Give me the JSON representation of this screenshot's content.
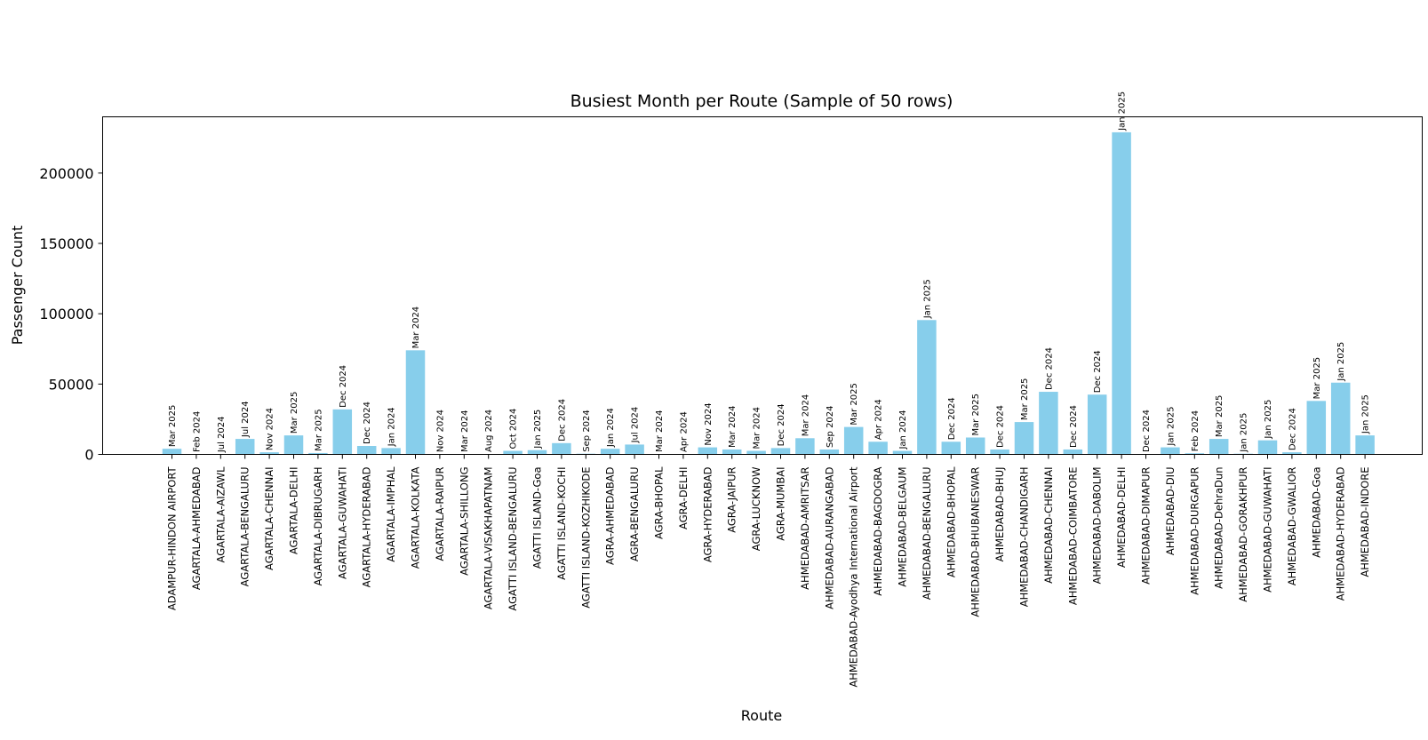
{
  "chart_data": {
    "type": "bar",
    "title": "Busiest Month per Route (Sample of 50 rows)",
    "xlabel": "Route",
    "ylabel": "Passenger Count",
    "ylim": [
      0,
      240000
    ],
    "yticks": [
      0,
      50000,
      100000,
      150000,
      200000
    ],
    "ytick_labels": [
      "0",
      "50000",
      "100000",
      "150000",
      "200000"
    ],
    "bar_color": "#87ceeb",
    "grid": false,
    "bars": [
      {
        "route": "ADAMPUR-HINDON AIRPORT",
        "value": 4000,
        "month": "Mar 2025"
      },
      {
        "route": "AGARTALA-AHMEDABAD",
        "value": 300,
        "month": "Feb 2024"
      },
      {
        "route": "AGARTALA-AIZAWL",
        "value": 200,
        "month": "Jul 2024"
      },
      {
        "route": "AGARTALA-BENGALURU",
        "value": 11000,
        "month": "Jul 2024"
      },
      {
        "route": "AGARTALA-CHENNAI",
        "value": 1500,
        "month": "Nov 2024"
      },
      {
        "route": "AGARTALA-DELHI",
        "value": 13500,
        "month": "Mar 2025"
      },
      {
        "route": "AGARTALA-DIBRUGARH",
        "value": 1000,
        "month": "Mar 2025"
      },
      {
        "route": "AGARTALA-GUWAHATI",
        "value": 32000,
        "month": "Dec 2024"
      },
      {
        "route": "AGARTALA-HYDERABAD",
        "value": 6000,
        "month": "Dec 2024"
      },
      {
        "route": "AGARTALA-IMPHAL",
        "value": 4500,
        "month": "Jan 2024"
      },
      {
        "route": "AGARTALA-KOLKATA",
        "value": 74000,
        "month": "Mar 2024"
      },
      {
        "route": "AGARTALA-RAIPUR",
        "value": 200,
        "month": "Nov 2024"
      },
      {
        "route": "AGARTALA-SHILLONG",
        "value": 300,
        "month": "Mar 2024"
      },
      {
        "route": "AGARTALA-VISAKHAPATNAM",
        "value": 300,
        "month": "Aug 2024"
      },
      {
        "route": "AGATTI ISLAND-BENGALURU",
        "value": 2500,
        "month": "Oct 2024"
      },
      {
        "route": "AGATTI ISLAND-Goa",
        "value": 3000,
        "month": "Jan 2025"
      },
      {
        "route": "AGATTI ISLAND-KOCHI",
        "value": 8000,
        "month": "Dec 2024"
      },
      {
        "route": "AGATTI ISLAND-KOZHIKODE",
        "value": 500,
        "month": "Sep 2024"
      },
      {
        "route": "AGRA-AHMEDABAD",
        "value": 4000,
        "month": "Jan 2024"
      },
      {
        "route": "AGRA-BENGALURU",
        "value": 7000,
        "month": "Jul 2024"
      },
      {
        "route": "AGRA-BHOPAL",
        "value": 300,
        "month": "Mar 2024"
      },
      {
        "route": "AGRA-DELHI",
        "value": 300,
        "month": "Apr 2024"
      },
      {
        "route": "AGRA-HYDERABAD",
        "value": 5000,
        "month": "Nov 2024"
      },
      {
        "route": "AGRA-JAIPUR",
        "value": 3500,
        "month": "Mar 2024"
      },
      {
        "route": "AGRA-LUCKNOW",
        "value": 2500,
        "month": "Mar 2024"
      },
      {
        "route": "AGRA-MUMBAI",
        "value": 4500,
        "month": "Dec 2024"
      },
      {
        "route": "AHMEDABAD-AMRITSAR",
        "value": 11500,
        "month": "Mar 2024"
      },
      {
        "route": "AHMEDABAD-AURANGABAD",
        "value": 3500,
        "month": "Sep 2024"
      },
      {
        "route": "AHMEDABAD-Ayodhya International Airport",
        "value": 19500,
        "month": "Mar 2025"
      },
      {
        "route": "AHMEDABAD-BAGDOGRA",
        "value": 9000,
        "month": "Apr 2024"
      },
      {
        "route": "AHMEDABAD-BELGAUM",
        "value": 2500,
        "month": "Jan 2024"
      },
      {
        "route": "AHMEDABAD-BENGALURU",
        "value": 95500,
        "month": "Jan 2025"
      },
      {
        "route": "AHMEDABAD-BHOPAL",
        "value": 9000,
        "month": "Dec 2024"
      },
      {
        "route": "AHMEDABAD-BHUBANESWAR",
        "value": 12000,
        "month": "Mar 2025"
      },
      {
        "route": "AHMEDABAD-BHUJ",
        "value": 3500,
        "month": "Dec 2024"
      },
      {
        "route": "AHMEDABAD-CHANDIGARH",
        "value": 23000,
        "month": "Mar 2025"
      },
      {
        "route": "AHMEDABAD-CHENNAI",
        "value": 44500,
        "month": "Dec 2024"
      },
      {
        "route": "AHMEDABAD-COIMBATORE",
        "value": 3500,
        "month": "Dec 2024"
      },
      {
        "route": "AHMEDABAD-DABOLIM",
        "value": 42500,
        "month": "Dec 2024"
      },
      {
        "route": "AHMEDABAD-DELHI",
        "value": 229000,
        "month": "Jan 2025"
      },
      {
        "route": "AHMEDABAD-DIMAPUR",
        "value": 300,
        "month": "Dec 2024"
      },
      {
        "route": "AHMEDABAD-DIU",
        "value": 5000,
        "month": "Jan 2025"
      },
      {
        "route": "AHMEDABAD-DURGAPUR",
        "value": 800,
        "month": "Feb 2024"
      },
      {
        "route": "AHMEDABAD-DehraDun",
        "value": 11000,
        "month": "Mar 2025"
      },
      {
        "route": "AHMEDABAD-GORAKHPUR",
        "value": 500,
        "month": "Jan 2025"
      },
      {
        "route": "AHMEDABAD-GUWAHATI",
        "value": 10000,
        "month": "Jan 2025"
      },
      {
        "route": "AHMEDABAD-GWALIOR",
        "value": 1500,
        "month": "Dec 2024"
      },
      {
        "route": "AHMEDABAD-Goa",
        "value": 38000,
        "month": "Mar 2025"
      },
      {
        "route": "AHMEDABAD-HYDERABAD",
        "value": 51000,
        "month": "Jan 2025"
      },
      {
        "route": "AHMEDABAD-INDORE",
        "value": 13500,
        "month": "Jan 2025"
      }
    ]
  }
}
